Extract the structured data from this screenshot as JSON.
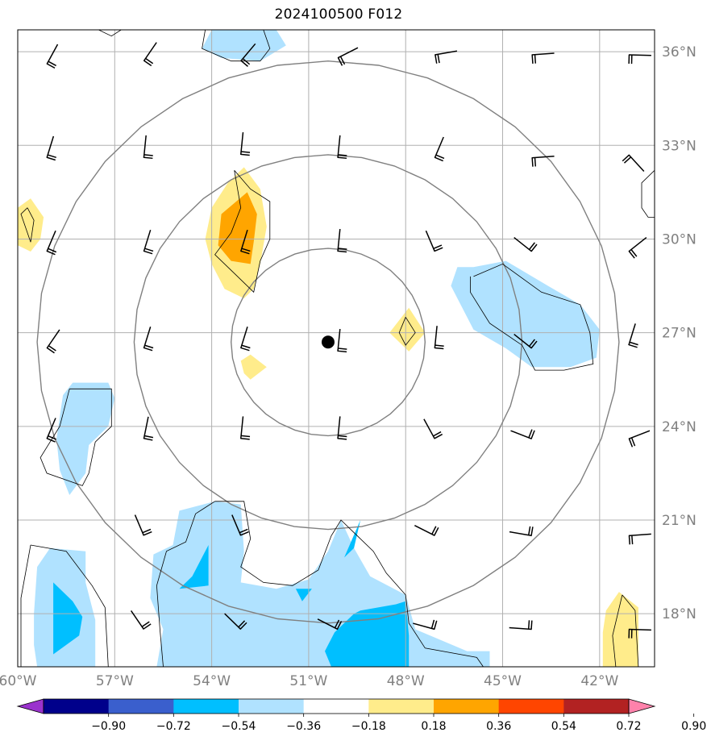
{
  "title": "2024100500 F012",
  "map": {
    "lon_range": [
      -60,
      -40.3
    ],
    "lat_range": [
      16.3,
      36.7
    ],
    "lon_ticks": [
      {
        "lon": -60,
        "label": "60°W"
      },
      {
        "lon": -57,
        "label": "57°W"
      },
      {
        "lon": -54,
        "label": "54°W"
      },
      {
        "lon": -51,
        "label": "51°W"
      },
      {
        "lon": -48,
        "label": "48°W"
      },
      {
        "lon": -45,
        "label": "45°W"
      },
      {
        "lon": -42,
        "label": "42°W"
      }
    ],
    "lat_ticks": [
      {
        "lat": 36,
        "label": "36°N"
      },
      {
        "lat": 33,
        "label": "33°N"
      },
      {
        "lat": 30,
        "label": "30°N"
      },
      {
        "lat": 27,
        "label": "27°N"
      },
      {
        "lat": 24,
        "label": "24°N"
      },
      {
        "lat": 21,
        "label": "21°N"
      },
      {
        "lat": 18,
        "label": "18°N"
      }
    ],
    "center": {
      "lon": -50.4,
      "lat": 26.7
    },
    "range_rings_deg": [
      3,
      6,
      9
    ],
    "colors": {
      "grid": "#b0b0b0",
      "ring": "#808080",
      "center_marker": "#000000"
    }
  },
  "colorbar": {
    "levels": [
      "−0.90",
      "−0.72",
      "−0.54",
      "−0.36",
      "−0.18",
      "0.18",
      "0.36",
      "0.54",
      "0.72",
      "0.90"
    ],
    "colors": [
      "#9a32cd",
      "#00008b",
      "#3a5fcd",
      "#00bfff",
      "#b0e2ff",
      "#ffffff",
      "#ffec8b",
      "#ffa500",
      "#ff4500",
      "#b22222",
      "#ff82ab"
    ]
  },
  "fields": {
    "fills": [
      {
        "color": "#b0e2ff",
        "pts": [
          [
            -53.5,
            36.7
          ],
          [
            -52.0,
            36.7
          ],
          [
            -51.7,
            36.2
          ],
          [
            -52.5,
            35.7
          ],
          [
            -53.7,
            35.8
          ],
          [
            -54.3,
            36.1
          ],
          [
            -54.0,
            36.7
          ]
        ]
      },
      {
        "color": "#b0e2ff",
        "pts": [
          [
            -45.9,
            29.1
          ],
          [
            -44.9,
            29.3
          ],
          [
            -43.6,
            28.5
          ],
          [
            -42.6,
            27.9
          ],
          [
            -42.0,
            27.1
          ],
          [
            -42.1,
            26.2
          ],
          [
            -42.9,
            25.9
          ],
          [
            -44.1,
            25.9
          ],
          [
            -44.9,
            26.5
          ],
          [
            -45.9,
            27.1
          ],
          [
            -46.6,
            28.5
          ],
          [
            -46.4,
            29.1
          ]
        ]
      },
      {
        "color": "#b0e2ff",
        "pts": [
          [
            -53.1,
            21.5
          ],
          [
            -53.0,
            20.0
          ],
          [
            -53.1,
            19.0
          ],
          [
            -52.0,
            18.8
          ],
          [
            -51.0,
            19.1
          ],
          [
            -50.4,
            20.0
          ],
          [
            -50.0,
            21.0
          ],
          [
            -49.6,
            20.1
          ],
          [
            -49.1,
            19.2
          ],
          [
            -48.0,
            18.6
          ],
          [
            -47.7,
            17.5
          ],
          [
            -46.1,
            16.8
          ],
          [
            -45.4,
            16.8
          ],
          [
            -45.4,
            16.3
          ],
          [
            -55.7,
            16.3
          ],
          [
            -55.5,
            17.5
          ],
          [
            -55.9,
            18.5
          ],
          [
            -55.8,
            19.9
          ],
          [
            -55.2,
            20.2
          ],
          [
            -55.0,
            21.3
          ],
          [
            -53.9,
            21.6
          ]
        ]
      },
      {
        "color": "#00bfff",
        "pts": [
          [
            -55.0,
            18.8
          ],
          [
            -54.1,
            18.9
          ],
          [
            -54.1,
            20.2
          ],
          [
            -54.6,
            19.2
          ]
        ]
      },
      {
        "color": "#00bfff",
        "pts": [
          [
            -51.4,
            18.8
          ],
          [
            -50.9,
            18.8
          ],
          [
            -51.2,
            18.4
          ]
        ]
      },
      {
        "color": "#00bfff",
        "pts": [
          [
            -49.6,
            20.1
          ],
          [
            -49.4,
            21.0
          ],
          [
            -49.9,
            19.8
          ]
        ]
      },
      {
        "color": "#00bfff",
        "pts": [
          [
            -50.3,
            16.3
          ],
          [
            -47.9,
            16.3
          ],
          [
            -47.9,
            17.3
          ],
          [
            -48.0,
            18.4
          ],
          [
            -48.3,
            18.3
          ],
          [
            -49.4,
            18.1
          ],
          [
            -49.6,
            18.0
          ],
          [
            -50.2,
            17.4
          ],
          [
            -50.5,
            16.8
          ]
        ]
      },
      {
        "color": "#b0e2ff",
        "pts": [
          [
            -58.3,
            25.4
          ],
          [
            -57.2,
            25.4
          ],
          [
            -57.0,
            24.9
          ],
          [
            -57.2,
            24.0
          ],
          [
            -57.8,
            23.4
          ],
          [
            -57.9,
            22.5
          ],
          [
            -58.4,
            21.8
          ],
          [
            -58.7,
            22.6
          ],
          [
            -58.8,
            23.6
          ],
          [
            -58.6,
            25.0
          ]
        ]
      },
      {
        "color": "#b0e2ff",
        "pts": [
          [
            -59.0,
            20.1
          ],
          [
            -57.9,
            20.0
          ],
          [
            -57.9,
            19.0
          ],
          [
            -57.6,
            17.8
          ],
          [
            -57.6,
            16.3
          ],
          [
            -59.4,
            16.3
          ],
          [
            -59.5,
            17.0
          ],
          [
            -59.5,
            18.0
          ],
          [
            -59.4,
            19.5
          ]
        ]
      },
      {
        "color": "#00bfff",
        "pts": [
          [
            -58.9,
            19.0
          ],
          [
            -58.3,
            18.4
          ],
          [
            -58.0,
            17.9
          ],
          [
            -58.1,
            17.3
          ],
          [
            -58.9,
            16.7
          ]
        ]
      },
      {
        "color": "#ffec8b",
        "pts": [
          [
            -53.0,
            32.3
          ],
          [
            -52.5,
            31.6
          ],
          [
            -52.3,
            30.4
          ],
          [
            -52.5,
            29.2
          ],
          [
            -52.7,
            28.4
          ],
          [
            -53.0,
            28.1
          ],
          [
            -53.6,
            28.4
          ],
          [
            -54.0,
            29.2
          ],
          [
            -54.2,
            30.0
          ],
          [
            -54.0,
            31.0
          ],
          [
            -53.5,
            31.8
          ]
        ]
      },
      {
        "color": "#ffa500",
        "pts": [
          [
            -52.9,
            31.5
          ],
          [
            -52.6,
            30.8
          ],
          [
            -52.7,
            29.9
          ],
          [
            -52.8,
            29.2
          ],
          [
            -53.4,
            29.3
          ],
          [
            -53.8,
            29.8
          ],
          [
            -53.7,
            30.8
          ]
        ]
      },
      {
        "color": "#ffec8b",
        "pts": [
          [
            -59.6,
            31.3
          ],
          [
            -59.2,
            30.7
          ],
          [
            -59.3,
            30.0
          ],
          [
            -59.6,
            29.6
          ],
          [
            -60.0,
            29.8
          ],
          [
            -60.0,
            31.0
          ]
        ]
      },
      {
        "color": "#ffec8b",
        "pts": [
          [
            -47.9,
            27.8
          ],
          [
            -47.4,
            27.0
          ],
          [
            -47.9,
            26.4
          ],
          [
            -48.5,
            27.0
          ]
        ]
      },
      {
        "color": "#ffec8b",
        "pts": [
          [
            -52.8,
            26.3
          ],
          [
            -52.3,
            25.9
          ],
          [
            -52.8,
            25.5
          ],
          [
            -53.0,
            25.7
          ],
          [
            -53.1,
            26.1
          ]
        ]
      },
      {
        "color": "#ffec8b",
        "pts": [
          [
            -41.4,
            18.7
          ],
          [
            -40.8,
            18.2
          ],
          [
            -40.8,
            16.3
          ],
          [
            -41.9,
            16.3
          ],
          [
            -41.9,
            17.4
          ],
          [
            -41.8,
            18.1
          ]
        ]
      }
    ],
    "contours": [
      [
        [
          -54.2,
          36.7
        ],
        [
          -54.3,
          36.1
        ],
        [
          -53.4,
          35.7
        ],
        [
          -52.5,
          35.7
        ],
        [
          -52.2,
          36.1
        ],
        [
          -52.4,
          36.7
        ]
      ],
      [
        [
          -57.5,
          36.7
        ],
        [
          -57.1,
          36.5
        ],
        [
          -56.8,
          36.7
        ]
      ],
      [
        [
          -45.9,
          28.8
        ],
        [
          -45.0,
          29.2
        ],
        [
          -43.8,
          28.3
        ],
        [
          -42.6,
          27.9
        ],
        [
          -42.3,
          27.0
        ],
        [
          -42.2,
          26.0
        ],
        [
          -43.1,
          25.8
        ],
        [
          -44.0,
          25.8
        ],
        [
          -44.4,
          26.6
        ],
        [
          -45.4,
          27.3
        ],
        [
          -46.0,
          28.3
        ],
        [
          -46.0,
          28.8
        ]
      ],
      [
        [
          -40.3,
          32.2
        ],
        [
          -40.7,
          31.8
        ],
        [
          -40.7,
          31.0
        ],
        [
          -40.5,
          30.7
        ],
        [
          -40.3,
          30.7
        ]
      ],
      [
        [
          -53.9,
          21.6
        ],
        [
          -53.0,
          21.6
        ],
        [
          -52.8,
          20.4
        ],
        [
          -53.1,
          19.5
        ],
        [
          -52.4,
          19.0
        ],
        [
          -51.5,
          18.9
        ],
        [
          -50.7,
          19.4
        ],
        [
          -50.3,
          20.5
        ],
        [
          -50.0,
          21.0
        ],
        [
          -49.5,
          20.5
        ],
        [
          -49.0,
          20.0
        ],
        [
          -48.6,
          19.3
        ],
        [
          -48.0,
          18.6
        ],
        [
          -47.9,
          17.7
        ],
        [
          -47.4,
          16.9
        ],
        [
          -45.8,
          16.6
        ],
        [
          -45.6,
          16.3
        ]
      ],
      [
        [
          -55.5,
          16.3
        ],
        [
          -55.6,
          17.5
        ],
        [
          -55.7,
          18.9
        ],
        [
          -55.4,
          20.0
        ],
        [
          -54.8,
          20.3
        ],
        [
          -54.5,
          21.2
        ],
        [
          -53.9,
          21.6
        ]
      ],
      [
        [
          -58.4,
          25.2
        ],
        [
          -57.1,
          25.2
        ],
        [
          -57.1,
          24.0
        ],
        [
          -57.6,
          23.5
        ],
        [
          -57.8,
          22.5
        ],
        [
          -58.0,
          22.1
        ],
        [
          -59.1,
          22.5
        ],
        [
          -59.3,
          23.0
        ],
        [
          -58.7,
          24.0
        ],
        [
          -58.4,
          25.2
        ]
      ],
      [
        [
          -59.6,
          20.2
        ],
        [
          -58.5,
          20.0
        ],
        [
          -57.7,
          18.9
        ],
        [
          -57.3,
          18.2
        ],
        [
          -57.2,
          16.3
        ],
        [
          -59.9,
          16.3
        ],
        [
          -59.9,
          18.5
        ],
        [
          -59.6,
          20.2
        ]
      ],
      [
        [
          -53.3,
          32.2
        ],
        [
          -52.8,
          31.6
        ],
        [
          -52.2,
          31.2
        ],
        [
          -52.2,
          30.0
        ],
        [
          -52.5,
          29.3
        ],
        [
          -52.7,
          28.3
        ],
        [
          -53.4,
          29.0
        ],
        [
          -53.9,
          29.5
        ],
        [
          -53.4,
          30.2
        ],
        [
          -53.1,
          31.0
        ],
        [
          -53.3,
          32.2
        ]
      ],
      [
        [
          -59.7,
          31.0
        ],
        [
          -59.5,
          30.6
        ],
        [
          -59.6,
          29.9
        ],
        [
          -59.9,
          30.8
        ],
        [
          -59.7,
          31.0
        ]
      ],
      [
        [
          -48.0,
          27.5
        ],
        [
          -47.7,
          27.0
        ],
        [
          -48.0,
          26.6
        ],
        [
          -48.2,
          27.0
        ],
        [
          -48.0,
          27.5
        ]
      ],
      [
        [
          -41.3,
          18.6
        ],
        [
          -40.9,
          18.1
        ],
        [
          -40.8,
          16.3
        ],
        [
          -41.5,
          16.3
        ],
        [
          -41.6,
          17.3
        ],
        [
          -41.3,
          18.6
        ]
      ]
    ],
    "barbs": [
      [
        -59.1,
        35.6,
        0.5
      ],
      [
        -56.1,
        35.7,
        0.6
      ],
      [
        -53.1,
        35.7,
        0.7
      ],
      [
        -50.1,
        35.8,
        1.1
      ],
      [
        -47.1,
        35.9,
        1.4
      ],
      [
        -44.1,
        35.9,
        1.5
      ],
      [
        -41.1,
        35.9,
        1.6
      ],
      [
        -59.1,
        32.6,
        0.3
      ],
      [
        -56.1,
        32.6,
        0.1
      ],
      [
        -53.1,
        32.7,
        0.1
      ],
      [
        -50.1,
        32.6,
        0.1
      ],
      [
        -47.1,
        32.6,
        0.4
      ],
      [
        -44.1,
        32.6,
        1.5
      ],
      [
        -41.1,
        32.7,
        2.4
      ],
      [
        -59.1,
        29.6,
        0.4
      ],
      [
        -56.1,
        29.6,
        0.3
      ],
      [
        -53.1,
        29.6,
        0.3
      ],
      [
        -50.1,
        29.6,
        0.1
      ],
      [
        -47.1,
        29.6,
        -0.4
      ],
      [
        -44.1,
        29.6,
        -0.9
      ],
      [
        -41.1,
        29.6,
        0.9
      ],
      [
        -59.1,
        26.5,
        0.6
      ],
      [
        -56.1,
        26.5,
        0.3
      ],
      [
        -53.1,
        26.5,
        0.3
      ],
      [
        -50.1,
        26.4,
        0.1
      ],
      [
        -47.1,
        26.5,
        0.1
      ],
      [
        -44.1,
        26.5,
        -0.9
      ],
      [
        -41.1,
        26.6,
        0.3
      ],
      [
        -59.1,
        23.6,
        0.4
      ],
      [
        -56.1,
        23.6,
        0.2
      ],
      [
        -53.1,
        23.6,
        0.1
      ],
      [
        -50.1,
        23.6,
        0.1
      ],
      [
        -47.1,
        23.6,
        -0.5
      ],
      [
        -44.1,
        23.6,
        -1.2
      ],
      [
        -41.1,
        23.6,
        1.2
      ],
      [
        -56.1,
        20.5,
        -0.4
      ],
      [
        -53.1,
        20.5,
        -0.4
      ],
      [
        -47.1,
        20.5,
        -1.1
      ],
      [
        -44.1,
        20.5,
        -1.4
      ],
      [
        -41.1,
        20.5,
        1.5
      ],
      [
        -56.1,
        17.5,
        -0.6
      ],
      [
        -53.1,
        17.5,
        -0.8
      ],
      [
        -50.1,
        17.5,
        -1.1
      ],
      [
        -47.1,
        17.5,
        -1.3
      ],
      [
        -44.1,
        17.5,
        -1.5
      ],
      [
        -41.1,
        17.5,
        1.6
      ]
    ]
  }
}
